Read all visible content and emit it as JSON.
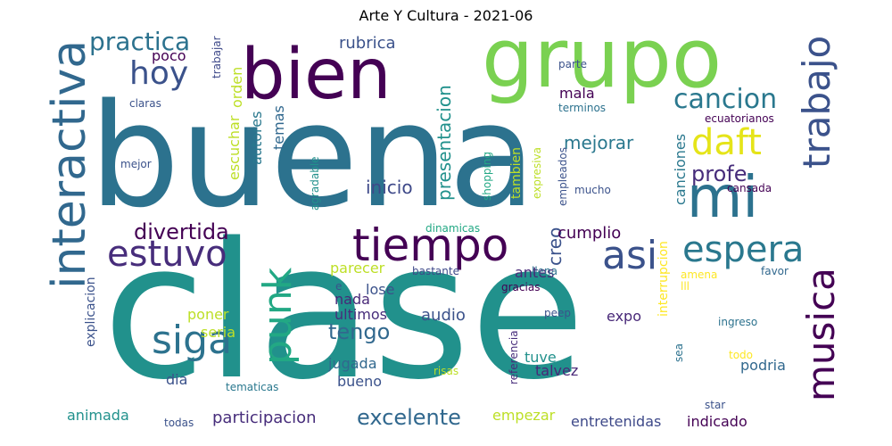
{
  "chart_data": {
    "type": "wordcloud",
    "title": "Arte Y Cultura - 2021-06",
    "words": [
      {
        "text": "clase",
        "weight": 100,
        "color": "#21918c"
      },
      {
        "text": "buena",
        "weight": 82,
        "color": "#2c728e"
      },
      {
        "text": "grupo",
        "weight": 50,
        "color": "#7ad151"
      },
      {
        "text": "bien",
        "weight": 42,
        "color": "#440154"
      },
      {
        "text": "interactiva",
        "weight": 30,
        "color": "#31688e"
      },
      {
        "text": "mi",
        "weight": 32,
        "color": "#2c728e"
      },
      {
        "text": "tiempo",
        "weight": 24,
        "color": "#440154"
      },
      {
        "text": "musica",
        "weight": 24,
        "color": "#440154"
      },
      {
        "text": "trabajo",
        "weight": 23,
        "color": "#3b528b"
      },
      {
        "text": "siga",
        "weight": 22,
        "color": "#2c728e"
      },
      {
        "text": "punk",
        "weight": 22,
        "color": "#22a884"
      },
      {
        "text": "asi",
        "weight": 22,
        "color": "#3b528b"
      },
      {
        "text": "estuvo",
        "weight": 20,
        "color": "#472d7b"
      },
      {
        "text": "espera",
        "weight": 20,
        "color": "#2a788e"
      },
      {
        "text": "daft",
        "weight": 20,
        "color": "#e5e419"
      },
      {
        "text": "hoy",
        "weight": 18,
        "color": "#3b528b"
      },
      {
        "text": "cancion",
        "weight": 16,
        "color": "#2a788e"
      },
      {
        "text": "practica",
        "weight": 14,
        "color": "#2c728e"
      },
      {
        "text": "excelente",
        "weight": 12,
        "color": "#31688e"
      },
      {
        "text": "divertida",
        "weight": 12,
        "color": "#440154"
      },
      {
        "text": "profe",
        "weight": 11,
        "color": "#472d7b"
      },
      {
        "text": "tengo",
        "weight": 11,
        "color": "#31688e"
      },
      {
        "text": "inicio",
        "weight": 10,
        "color": "#3e4989"
      },
      {
        "text": "presentacion",
        "weight": 10,
        "color": "#21918c"
      },
      {
        "text": "mejorar",
        "weight": 10,
        "color": "#2a788e"
      },
      {
        "text": "creo",
        "weight": 10,
        "color": "#3b528b"
      },
      {
        "text": "participacion",
        "weight": 9,
        "color": "#472d7b"
      },
      {
        "text": "rubrica",
        "weight": 9,
        "color": "#3b528b"
      },
      {
        "text": "cumplio",
        "weight": 9,
        "color": "#440154"
      },
      {
        "text": "audio",
        "weight": 9,
        "color": "#3b528b"
      },
      {
        "text": "animada",
        "weight": 8,
        "color": "#21918c"
      },
      {
        "text": "indicado",
        "weight": 8,
        "color": "#440154"
      },
      {
        "text": "entretenidas",
        "weight": 8,
        "color": "#3e4989"
      },
      {
        "text": "empezar",
        "weight": 8,
        "color": "#bddf26"
      },
      {
        "text": "talvez",
        "weight": 8,
        "color": "#482878"
      },
      {
        "text": "poco",
        "weight": 8,
        "color": "#440154"
      },
      {
        "text": "mala",
        "weight": 8,
        "color": "#440154"
      },
      {
        "text": "temas",
        "weight": 8,
        "color": "#31688e"
      },
      {
        "text": "autores",
        "weight": 8,
        "color": "#2a788e"
      },
      {
        "text": "escuchar",
        "weight": 8,
        "color": "#bddf26"
      },
      {
        "text": "orden",
        "weight": 8,
        "color": "#bddf26"
      },
      {
        "text": "canciones",
        "weight": 8,
        "color": "#2a788e"
      },
      {
        "text": "ultimos",
        "weight": 8,
        "color": "#472d7b"
      },
      {
        "text": "nada",
        "weight": 8,
        "color": "#482878"
      },
      {
        "text": "parecer",
        "weight": 8,
        "color": "#bddf26"
      },
      {
        "text": "antes",
        "weight": 8,
        "color": "#482878"
      },
      {
        "text": "lose",
        "weight": 8,
        "color": "#3b528b"
      },
      {
        "text": "jugada",
        "weight": 8,
        "color": "#31688e"
      },
      {
        "text": "bueno",
        "weight": 8,
        "color": "#3b528b"
      },
      {
        "text": "expo",
        "weight": 8,
        "color": "#482878"
      },
      {
        "text": "tuve",
        "weight": 8,
        "color": "#21918c"
      },
      {
        "text": "podria",
        "weight": 8,
        "color": "#31688e"
      },
      {
        "text": "poner",
        "weight": 8,
        "color": "#bddf26"
      },
      {
        "text": "seria",
        "weight": 8,
        "color": "#bddf26"
      },
      {
        "text": "dia",
        "weight": 8,
        "color": "#3b528b"
      },
      {
        "text": "explicacion",
        "weight": 7,
        "color": "#3b528b"
      },
      {
        "text": "interrupcion",
        "weight": 7,
        "color": "#fde725"
      },
      {
        "text": "tambien",
        "weight": 7,
        "color": "#bddf26"
      },
      {
        "text": "ecuatorianos",
        "weight": 6,
        "color": "#440154"
      },
      {
        "text": "terminos",
        "weight": 6,
        "color": "#2c728e"
      },
      {
        "text": "parte",
        "weight": 6,
        "color": "#3b528b"
      },
      {
        "text": "trabajar",
        "weight": 6,
        "color": "#3e4989"
      },
      {
        "text": "claras",
        "weight": 6,
        "color": "#3b528b"
      },
      {
        "text": "mejor",
        "weight": 6,
        "color": "#3b528b"
      },
      {
        "text": "agradable",
        "weight": 6,
        "color": "#21918c"
      },
      {
        "text": "dinamicas",
        "weight": 6,
        "color": "#22a884"
      },
      {
        "text": "shopping",
        "weight": 6,
        "color": "#22a884"
      },
      {
        "text": "expresiva",
        "weight": 6,
        "color": "#bddf26"
      },
      {
        "text": "empleados",
        "weight": 6,
        "color": "#3b528b"
      },
      {
        "text": "mucho",
        "weight": 6,
        "color": "#3b528b"
      },
      {
        "text": "cansada",
        "weight": 6,
        "color": "#440154"
      },
      {
        "text": "bastante",
        "weight": 6,
        "color": "#3e4989"
      },
      {
        "text": "llena",
        "weight": 6,
        "color": "#2c728e"
      },
      {
        "text": "gracias",
        "weight": 6,
        "color": "#440154"
      },
      {
        "text": "amena",
        "weight": 6,
        "color": "#fde725"
      },
      {
        "text": "lll",
        "weight": 6,
        "color": "#fde725"
      },
      {
        "text": "favor",
        "weight": 6,
        "color": "#31688e"
      },
      {
        "text": "e",
        "weight": 6,
        "color": "#3b528b"
      },
      {
        "text": "peep",
        "weight": 6,
        "color": "#3b528b"
      },
      {
        "text": "ingreso",
        "weight": 6,
        "color": "#2c728e"
      },
      {
        "text": "referencia",
        "weight": 6,
        "color": "#472d7b"
      },
      {
        "text": "sea",
        "weight": 6,
        "color": "#2c728e"
      },
      {
        "text": "todo",
        "weight": 6,
        "color": "#fde725"
      },
      {
        "text": "risas",
        "weight": 6,
        "color": "#bddf26"
      },
      {
        "text": "star",
        "weight": 6,
        "color": "#3b528b"
      },
      {
        "text": "tematicas",
        "weight": 6,
        "color": "#2a788e"
      },
      {
        "text": "todas",
        "weight": 6,
        "color": "#3b528b"
      }
    ]
  }
}
